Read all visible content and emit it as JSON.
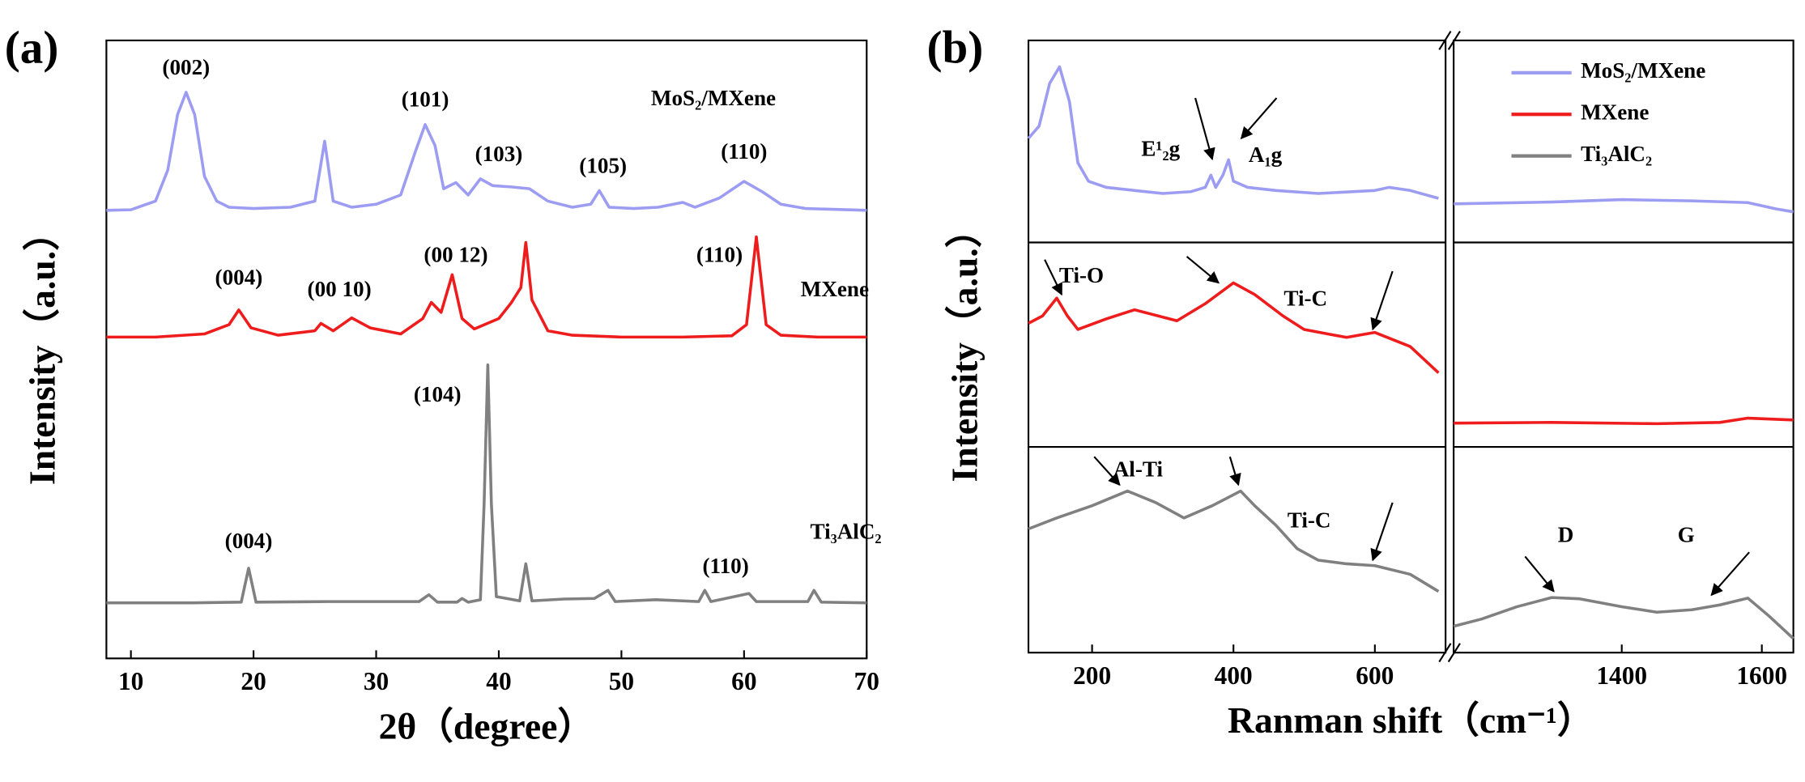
{
  "chart_data": [
    {
      "type": "line",
      "panel_label": "(a)",
      "xlabel": "2θ（degree）",
      "ylabel": "Intensity（a.u.）",
      "xlim": [
        8,
        70
      ],
      "xticks": [
        10,
        20,
        30,
        40,
        50,
        60,
        70
      ],
      "ylim": [
        0,
        100
      ],
      "series": [
        {
          "name": "MoS₂/MXene",
          "color": "#9c9cf2",
          "x": [
            8,
            10,
            12,
            13,
            13.8,
            14.5,
            15.2,
            16,
            17,
            18,
            20,
            23,
            25,
            25.8,
            26.5,
            28,
            30,
            32,
            33.2,
            34,
            34.8,
            35.5,
            36.5,
            37.5,
            38.5,
            39.5,
            41,
            42.5,
            44,
            46,
            47.5,
            48.2,
            49,
            51,
            53,
            55,
            56,
            58,
            60,
            61.5,
            63,
            65,
            70
          ],
          "values": [
            72.5,
            72.6,
            74,
            79,
            88,
            91.6,
            88,
            78,
            74,
            73,
            72.8,
            73,
            74,
            83.7,
            74,
            73,
            73.5,
            75,
            82,
            86.4,
            83,
            76,
            77,
            75,
            77.6,
            76.5,
            76.3,
            76,
            74,
            73,
            73.5,
            75.7,
            73,
            72.8,
            73,
            73.8,
            73,
            74.5,
            77.2,
            75.5,
            73.5,
            72.8,
            72.5
          ]
        },
        {
          "name": "MXene",
          "color": "#ee1c1c",
          "x": [
            8,
            12,
            16,
            18,
            18.8,
            19.8,
            22,
            25,
            25.5,
            26.5,
            28,
            29.5,
            32,
            33.8,
            34.5,
            35.3,
            36.2,
            37,
            38,
            40,
            41,
            41.8,
            42.2,
            42.7,
            44,
            46,
            50,
            55,
            59,
            60.2,
            61,
            61.8,
            63,
            66,
            70
          ],
          "values": [
            52,
            52,
            52.5,
            54,
            56.4,
            53.5,
            52.3,
            53,
            54.2,
            53,
            55.1,
            53.5,
            52.5,
            55,
            57.6,
            56,
            62.1,
            55,
            53.3,
            55,
            57.5,
            60,
            67.3,
            58,
            53,
            52.3,
            52,
            52,
            52.2,
            54,
            68.2,
            54,
            52.3,
            52,
            52
          ]
        },
        {
          "name": "Ti₃AlC₂",
          "color": "#808080",
          "x": [
            8,
            15,
            19,
            19.6,
            20.2,
            26,
            33.5,
            34.3,
            35,
            36.6,
            37,
            37.5,
            38.5,
            38.8,
            39.1,
            39.4,
            39.8,
            41.7,
            42.2,
            42.7,
            45.3,
            47.8,
            48.9,
            49.5,
            52.8,
            56.3,
            56.8,
            57.3,
            60.4,
            61,
            65.2,
            65.7,
            66.3,
            70
          ],
          "values": [
            9,
            9,
            9.1,
            14.6,
            9.1,
            9.2,
            9.2,
            10.3,
            9.1,
            9.1,
            9.7,
            9.1,
            9.5,
            25,
            47.5,
            25,
            10,
            9.3,
            15.3,
            9.3,
            9.6,
            9.7,
            11,
            9.2,
            9.5,
            9.2,
            11,
            9.2,
            10.5,
            9.2,
            9.2,
            11,
            9.1,
            9
          ]
        }
      ],
      "annotations": [
        {
          "text": "(002)",
          "x": 14.5,
          "y": 95.3
        },
        {
          "text": "(101)",
          "x": 34,
          "y": 90.1
        },
        {
          "text": "(103)",
          "x": 40,
          "y": 81.3
        },
        {
          "text": "(105)",
          "x": 48.5,
          "y": 79.4
        },
        {
          "text": "(110)",
          "x": 60,
          "y": 81.7
        },
        {
          "text": "MoS₂/MXene",
          "x": 57.5,
          "y": 90.3
        },
        {
          "text": "(004)",
          "x": 18.8,
          "y": 61.3
        },
        {
          "text": "(00 10)",
          "x": 27,
          "y": 59.4
        },
        {
          "text": "(00 12)",
          "x": 36.5,
          "y": 65
        },
        {
          "text": "(110)",
          "x": 58,
          "y": 65
        },
        {
          "text": "MXene",
          "x": 67.4,
          "y": 59.4
        },
        {
          "text": "(104)",
          "x": 35,
          "y": 42.4
        },
        {
          "text": "(004)",
          "x": 19.6,
          "y": 18.7
        },
        {
          "text": "(110)",
          "x": 58.5,
          "y": 14.6
        },
        {
          "text": "Ti₃AlC₂",
          "x": 68.3,
          "y": 20.2
        }
      ]
    },
    {
      "type": "line",
      "panel_label": "(b)",
      "xlabel": "Ranman shift（cm⁻¹）",
      "ylabel": "Intensity（a.u.）",
      "xsegments": [
        [
          110,
          700
        ],
        [
          1160,
          1645
        ]
      ],
      "xticks": [
        200,
        400,
        600,
        1400,
        1600
      ],
      "ylim": [
        0,
        100
      ],
      "hlines": [
        33.6,
        67
      ],
      "legend": "upper right",
      "series": [
        {
          "name": "MoS₂/MXene",
          "color": "#9c9cf2",
          "x": [
            110,
            125,
            140,
            154,
            168,
            180,
            195,
            220,
            260,
            300,
            340,
            360,
            368,
            375,
            385,
            393,
            400,
            420,
            460,
            520,
            600,
            620,
            650,
            690,
            null,
            1160,
            1300,
            1400,
            1500,
            1580,
            1620,
            1645
          ],
          "values": [
            84,
            86,
            93,
            95.7,
            90,
            80,
            77,
            76,
            75.5,
            75,
            75.3,
            76,
            78,
            76,
            78,
            80.5,
            77,
            76,
            75.5,
            75,
            75.5,
            76,
            75.5,
            74.2,
            null,
            73.3,
            73.6,
            74,
            73.8,
            73.5,
            72.5,
            72
          ]
        },
        {
          "name": "MXene",
          "color": "#ee1c1c",
          "x": [
            110,
            130,
            150,
            165,
            180,
            220,
            260,
            320,
            360,
            400,
            430,
            470,
            500,
            560,
            600,
            650,
            690,
            null,
            1160,
            1300,
            1450,
            1540,
            1580,
            1645
          ],
          "values": [
            53.8,
            55,
            57.9,
            55,
            52.8,
            54.5,
            56,
            54.2,
            57,
            60.4,
            58.5,
            55,
            52.8,
            51.5,
            52.3,
            50,
            45.7,
            null,
            37.5,
            37.6,
            37.4,
            37.6,
            38.3,
            38
          ]
        },
        {
          "name": "Ti₃AlC₂",
          "color": "#808080",
          "x": [
            110,
            150,
            200,
            250,
            290,
            330,
            370,
            410,
            430,
            460,
            490,
            520,
            560,
            600,
            650,
            690,
            null,
            1160,
            1200,
            1250,
            1300,
            1340,
            1400,
            1450,
            1500,
            1540,
            1580,
            1610,
            1645
          ],
          "values": [
            20.2,
            22,
            24,
            26.4,
            24.5,
            22,
            24,
            26.4,
            24,
            20.8,
            17,
            15.1,
            14.5,
            14.2,
            12.8,
            10,
            null,
            4.3,
            5.5,
            7.5,
            9,
            8.8,
            7.5,
            6.6,
            7,
            7.8,
            8.9,
            6,
            2.3
          ]
        }
      ],
      "annotations": [
        {
          "text": "E¹₂g",
          "x": 297,
          "y": 82
        },
        {
          "text": "A₁g",
          "x": 445,
          "y": 81
        },
        {
          "text": "Ti-O",
          "x": 185,
          "y": 61.3
        },
        {
          "text": "Ti-C",
          "x": 502,
          "y": 57.5
        },
        {
          "text": "Al-Ti",
          "x": 265,
          "y": 29.6
        },
        {
          "text": "Ti-C",
          "x": 507,
          "y": 21.3
        },
        {
          "text": "D",
          "x": 1320,
          "y": 18.9
        },
        {
          "text": "G",
          "x": 1492,
          "y": 18.9
        }
      ],
      "arrows": [
        [
          346,
          90.6,
          370,
          80.6
        ],
        [
          461,
          90.6,
          411,
          84
        ],
        [
          133,
          64.2,
          157,
          58.5
        ],
        [
          334,
          64.7,
          379,
          60.4
        ],
        [
          625,
          62.3,
          597,
          52.8
        ],
        [
          203,
          32,
          239,
          27.4
        ],
        [
          395,
          32,
          407,
          27.4
        ],
        [
          625,
          24.5,
          597,
          15.1
        ],
        [
          1262,
          15.7,
          1303,
          10
        ],
        [
          1582,
          16.4,
          1528,
          9.4
        ]
      ]
    }
  ]
}
